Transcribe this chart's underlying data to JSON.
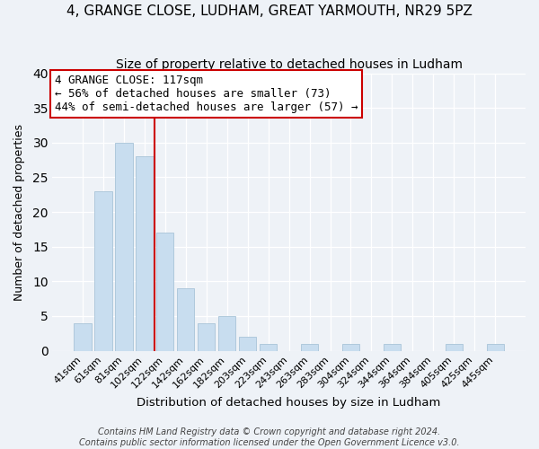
{
  "title": "4, GRANGE CLOSE, LUDHAM, GREAT YARMOUTH, NR29 5PZ",
  "subtitle": "Size of property relative to detached houses in Ludham",
  "xlabel": "Distribution of detached houses by size in Ludham",
  "ylabel": "Number of detached properties",
  "bar_color": "#c8ddef",
  "bar_edge_color": "#a8c4d8",
  "background_color": "#eef2f7",
  "grid_color": "#ffffff",
  "bins": [
    "41sqm",
    "61sqm",
    "81sqm",
    "102sqm",
    "122sqm",
    "142sqm",
    "162sqm",
    "182sqm",
    "203sqm",
    "223sqm",
    "243sqm",
    "263sqm",
    "283sqm",
    "304sqm",
    "324sqm",
    "344sqm",
    "364sqm",
    "384sqm",
    "405sqm",
    "425sqm",
    "445sqm"
  ],
  "counts": [
    4,
    23,
    30,
    28,
    17,
    9,
    4,
    5,
    2,
    1,
    0,
    1,
    0,
    1,
    0,
    1,
    0,
    0,
    1,
    0,
    1
  ],
  "vline_color": "#cc0000",
  "vline_x_index": 3.5,
  "ylim": [
    0,
    40
  ],
  "yticks": [
    0,
    5,
    10,
    15,
    20,
    25,
    30,
    35,
    40
  ],
  "annotation_title": "4 GRANGE CLOSE: 117sqm",
  "annotation_line1": "← 56% of detached houses are smaller (73)",
  "annotation_line2": "44% of semi-detached houses are larger (57) →",
  "annotation_box_color": "#ffffff",
  "annotation_edge_color": "#cc0000",
  "footer1": "Contains HM Land Registry data © Crown copyright and database right 2024.",
  "footer2": "Contains public sector information licensed under the Open Government Licence v3.0.",
  "title_fontsize": 11,
  "subtitle_fontsize": 10,
  "xlabel_fontsize": 9.5,
  "ylabel_fontsize": 9,
  "tick_fontsize": 8,
  "annotation_fontsize": 9,
  "footer_fontsize": 7
}
